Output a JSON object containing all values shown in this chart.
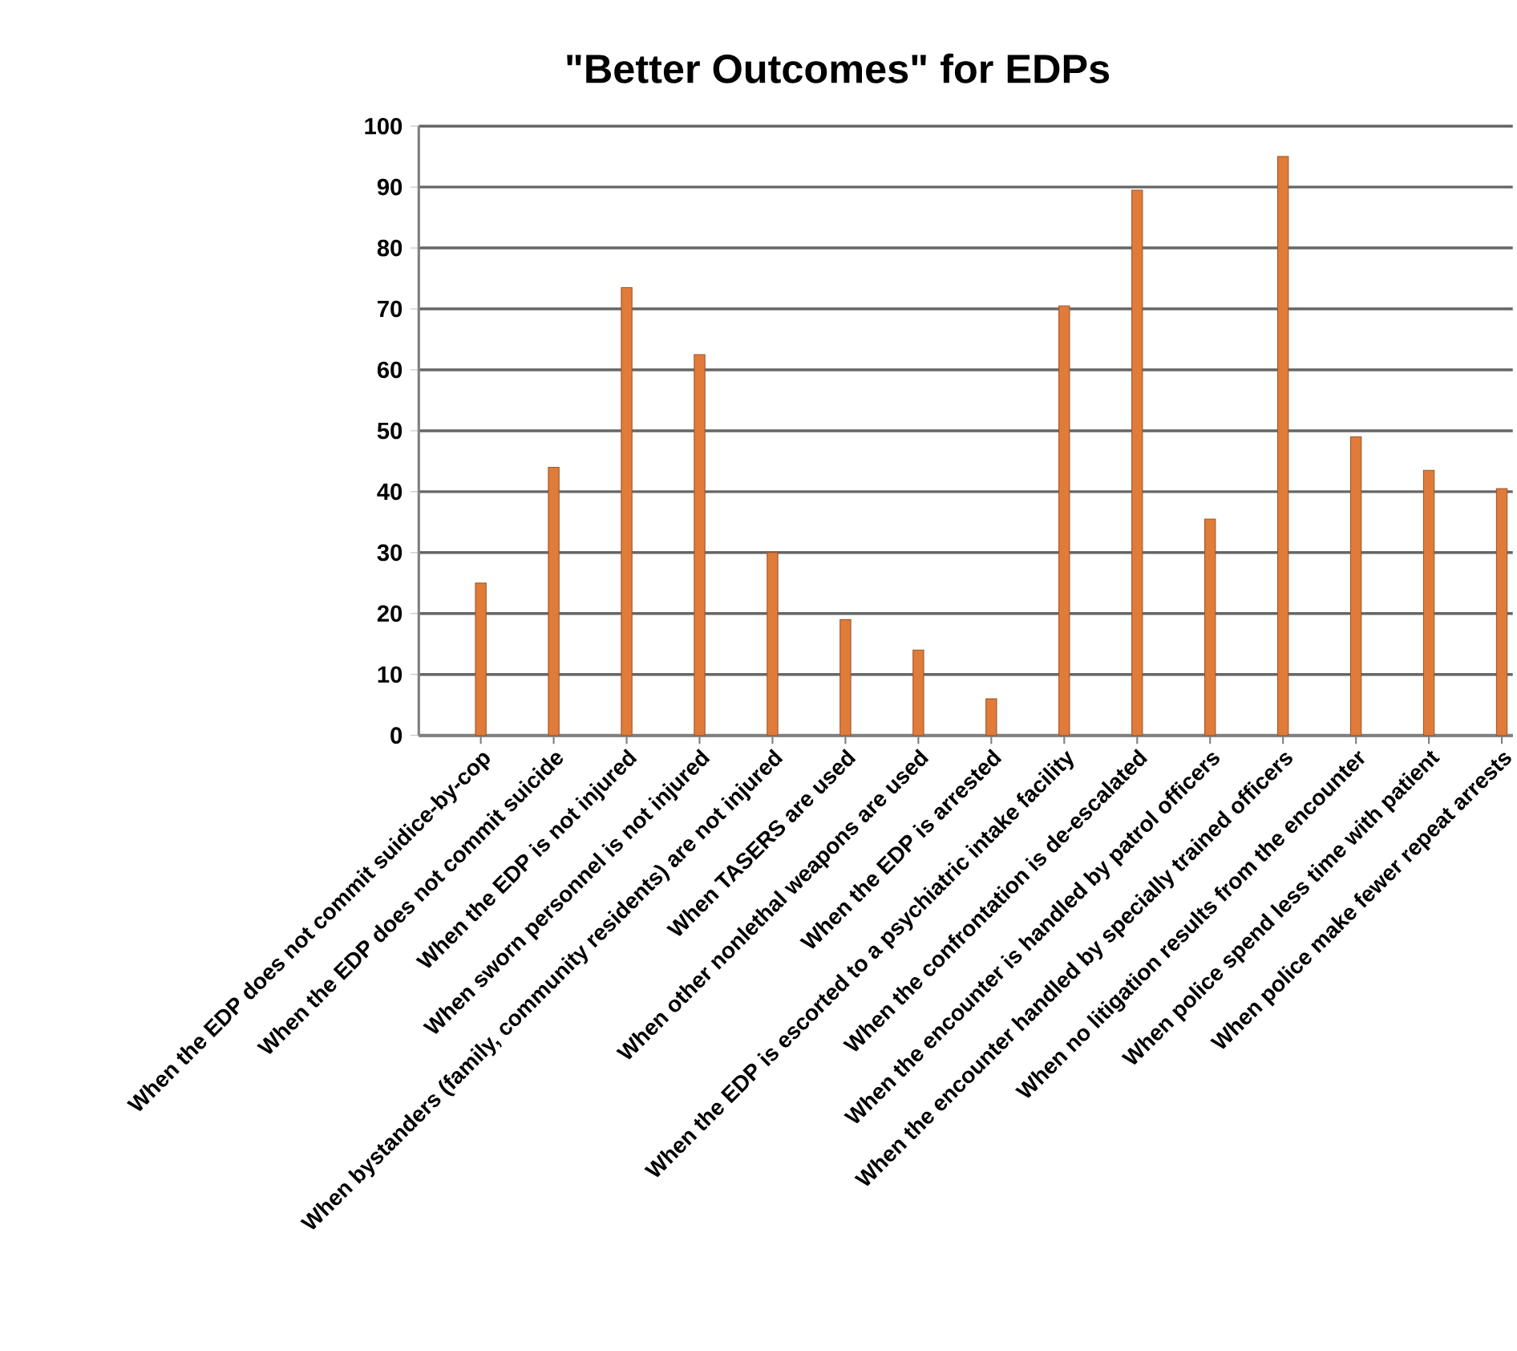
{
  "chart_data": {
    "type": "bar",
    "title": "\"Better Outcomes\" for EDPs",
    "categories": [
      "When the EDP does not commit suidice-by-cop",
      "When the EDP does not commit suicide",
      "When the EDP is not injured",
      "When sworn personnel is not injured",
      "When bystanders (family, community residents) are not injured",
      "When TASERS are used",
      "When other nonlethal weapons are used",
      "When the EDP is arrested",
      "When the EDP is escorted to a psychiatric intake facility",
      "When the confrontation is de-escalated",
      "When the encounter is handled by patrol officers",
      "When the encounter handled by specially trained officers",
      "When no litigation results from the encounter",
      "When police spend less time with patient",
      "When police make fewer repeat arrests"
    ],
    "values": [
      25,
      44,
      73.5,
      62.5,
      30,
      19,
      14,
      6,
      70.5,
      89.5,
      35.5,
      95,
      49,
      43.5,
      40.5
    ],
    "color": "#e07b39",
    "ylim": [
      0,
      100
    ],
    "yticks": [
      0,
      10,
      20,
      30,
      40,
      50,
      60,
      70,
      80,
      90,
      100
    ],
    "grid": "y"
  }
}
